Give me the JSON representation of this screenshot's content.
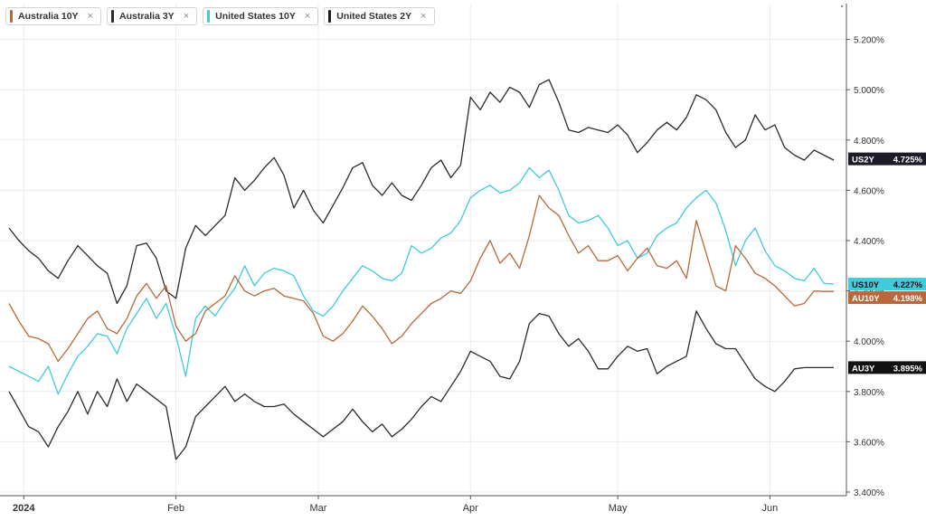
{
  "legend": [
    {
      "label": "Australia 10Y",
      "color": "#b8683a",
      "close": "×"
    },
    {
      "label": "Australia 3Y",
      "color": "#2b2b2b",
      "close": "×"
    },
    {
      "label": "United States 10Y",
      "color": "#3ecbdb",
      "close": "×"
    },
    {
      "label": "United States 2Y",
      "color": "#1c1c28",
      "close": "×"
    }
  ],
  "chart_data": {
    "type": "line",
    "xlabel": "",
    "ylabel": "",
    "ylim": [
      3.4,
      5.4
    ],
    "y_ticks": [
      "3.400%",
      "3.600%",
      "3.800%",
      "4.000%",
      "4.200%",
      "4.400%",
      "4.600%",
      "4.800%",
      "5.000%",
      "5.200%"
    ],
    "x_ticks": [
      "2024",
      "Feb",
      "Mar",
      "Apr",
      "May",
      "Jun"
    ],
    "x_tick_days": [
      3,
      34,
      63,
      94,
      124,
      155
    ],
    "x_range": [
      "2023-12-29",
      "2024-06-17"
    ],
    "grid": true,
    "legend_position": "top-left",
    "series": [
      {
        "name": "United States 2Y",
        "tag": "US2Y",
        "last": "4.725%",
        "last_value": 4.725,
        "color": "#2b2b2b",
        "tag_bg": "#1c1c28",
        "tag_text": "#ffffff",
        "x": [
          0,
          2,
          4,
          6,
          8,
          10,
          12,
          14,
          16,
          18,
          20,
          22,
          24,
          26,
          28,
          30,
          32,
          34,
          36,
          38,
          40,
          42,
          44,
          46,
          48,
          50,
          52,
          54,
          56,
          58,
          60,
          62,
          64,
          66,
          68,
          70,
          72,
          74,
          76,
          78,
          80,
          82,
          84,
          86,
          88,
          90,
          92,
          94,
          96,
          98,
          100,
          102,
          104,
          106,
          108,
          110,
          112,
          114,
          116,
          118,
          120,
          122,
          124,
          126,
          128,
          130,
          132,
          134,
          136,
          138,
          140,
          142,
          144,
          146,
          148,
          150,
          152,
          154,
          156,
          158,
          160,
          162,
          164,
          166,
          168
        ],
        "values": [
          4.45,
          4.4,
          4.36,
          4.33,
          4.28,
          4.25,
          4.32,
          4.38,
          4.34,
          4.3,
          4.27,
          4.15,
          4.22,
          4.38,
          4.39,
          4.33,
          4.2,
          4.17,
          4.37,
          4.46,
          4.42,
          4.46,
          4.5,
          4.65,
          4.6,
          4.64,
          4.69,
          4.73,
          4.66,
          4.53,
          4.6,
          4.52,
          4.47,
          4.54,
          4.61,
          4.69,
          4.71,
          4.62,
          4.58,
          4.63,
          4.58,
          4.56,
          4.62,
          4.69,
          4.72,
          4.65,
          4.7,
          4.97,
          4.92,
          4.99,
          4.95,
          5.01,
          4.99,
          4.93,
          5.02,
          5.04,
          4.95,
          4.84,
          4.83,
          4.85,
          4.84,
          4.83,
          4.86,
          4.82,
          4.75,
          4.79,
          4.84,
          4.87,
          4.84,
          4.89,
          4.98,
          4.96,
          4.92,
          4.83,
          4.77,
          4.8,
          4.9,
          4.84,
          4.86,
          4.77,
          4.74,
          4.72,
          4.76,
          4.74,
          4.72
        ]
      },
      {
        "name": "United States 10Y",
        "tag": "US10Y",
        "last": "4.227%",
        "last_value": 4.227,
        "color": "#3ecbdb",
        "tag_bg": "#3ecbdb",
        "tag_text": "#111111",
        "x": [
          0,
          2,
          4,
          6,
          8,
          10,
          12,
          14,
          16,
          18,
          20,
          22,
          24,
          26,
          28,
          30,
          32,
          34,
          36,
          38,
          40,
          42,
          44,
          46,
          48,
          50,
          52,
          54,
          56,
          58,
          60,
          62,
          64,
          66,
          68,
          70,
          72,
          74,
          76,
          78,
          80,
          82,
          84,
          86,
          88,
          90,
          92,
          94,
          96,
          98,
          100,
          102,
          104,
          106,
          108,
          110,
          112,
          114,
          116,
          118,
          120,
          122,
          124,
          126,
          128,
          130,
          132,
          134,
          136,
          138,
          140,
          142,
          144,
          146,
          148,
          150,
          152,
          154,
          156,
          158,
          160,
          162,
          164,
          166,
          168
        ],
        "values": [
          3.9,
          3.88,
          3.86,
          3.84,
          3.9,
          3.79,
          3.87,
          3.94,
          3.98,
          4.03,
          4.02,
          3.95,
          4.05,
          4.11,
          4.17,
          4.09,
          4.15,
          4.02,
          3.86,
          4.09,
          4.14,
          4.1,
          4.16,
          4.21,
          4.3,
          4.22,
          4.27,
          4.29,
          4.28,
          4.26,
          4.18,
          4.12,
          4.1,
          4.14,
          4.2,
          4.25,
          4.3,
          4.28,
          4.25,
          4.24,
          4.27,
          4.38,
          4.35,
          4.37,
          4.41,
          4.43,
          4.48,
          4.57,
          4.6,
          4.62,
          4.59,
          4.6,
          4.63,
          4.69,
          4.65,
          4.68,
          4.6,
          4.5,
          4.47,
          4.48,
          4.5,
          4.45,
          4.38,
          4.4,
          4.33,
          4.35,
          4.42,
          4.45,
          4.47,
          4.53,
          4.57,
          4.6,
          4.55,
          4.44,
          4.3,
          4.4,
          4.45,
          4.36,
          4.3,
          4.28,
          4.25,
          4.24,
          4.29,
          4.23,
          4.227
        ]
      },
      {
        "name": "Australia 10Y",
        "tag": "AU10Y",
        "last": "4.198%",
        "last_value": 4.198,
        "color": "#b8683a",
        "tag_bg": "#b8683a",
        "tag_text": "#ffffff",
        "x": [
          0,
          2,
          4,
          6,
          8,
          10,
          12,
          14,
          16,
          18,
          20,
          22,
          24,
          26,
          28,
          30,
          32,
          34,
          36,
          38,
          40,
          42,
          44,
          46,
          48,
          50,
          52,
          54,
          56,
          58,
          60,
          62,
          64,
          66,
          68,
          70,
          72,
          74,
          76,
          78,
          80,
          82,
          84,
          86,
          88,
          90,
          92,
          94,
          96,
          98,
          100,
          102,
          104,
          106,
          108,
          110,
          112,
          114,
          116,
          118,
          120,
          122,
          124,
          126,
          128,
          130,
          132,
          134,
          136,
          138,
          140,
          142,
          144,
          146,
          148,
          150,
          152,
          154,
          156,
          158,
          160,
          162,
          164,
          166,
          168
        ],
        "values": [
          4.15,
          4.08,
          4.02,
          4.01,
          3.99,
          3.92,
          3.97,
          4.03,
          4.09,
          4.12,
          4.05,
          4.03,
          4.09,
          4.18,
          4.23,
          4.17,
          4.22,
          4.06,
          4.0,
          4.03,
          4.12,
          4.15,
          4.18,
          4.26,
          4.2,
          4.18,
          4.2,
          4.21,
          4.18,
          4.17,
          4.16,
          4.11,
          4.02,
          4.0,
          4.03,
          4.08,
          4.14,
          4.1,
          4.05,
          3.99,
          4.02,
          4.07,
          4.11,
          4.15,
          4.17,
          4.2,
          4.19,
          4.24,
          4.33,
          4.4,
          4.31,
          4.35,
          4.29,
          4.42,
          4.58,
          4.53,
          4.5,
          4.42,
          4.35,
          4.38,
          4.32,
          4.32,
          4.34,
          4.28,
          4.33,
          4.37,
          4.3,
          4.29,
          4.32,
          4.25,
          4.48,
          4.35,
          4.22,
          4.2,
          4.38,
          4.33,
          4.27,
          4.25,
          4.22,
          4.18,
          4.14,
          4.15,
          4.2,
          4.198,
          4.198
        ]
      },
      {
        "name": "Australia 3Y",
        "tag": "AU3Y",
        "last": "3.895%",
        "last_value": 3.895,
        "color": "#2b2b2b",
        "tag_bg": "#111111",
        "tag_text": "#ffffff",
        "x": [
          0,
          2,
          4,
          6,
          8,
          10,
          12,
          14,
          16,
          18,
          20,
          22,
          24,
          26,
          28,
          30,
          32,
          34,
          36,
          38,
          40,
          42,
          44,
          46,
          48,
          50,
          52,
          54,
          56,
          58,
          60,
          62,
          64,
          66,
          68,
          70,
          72,
          74,
          76,
          78,
          80,
          82,
          84,
          86,
          88,
          90,
          92,
          94,
          96,
          98,
          100,
          102,
          104,
          106,
          108,
          110,
          112,
          114,
          116,
          118,
          120,
          122,
          124,
          126,
          128,
          130,
          132,
          134,
          136,
          138,
          140,
          142,
          144,
          146,
          148,
          150,
          152,
          154,
          156,
          158,
          160,
          162,
          164,
          166,
          168
        ],
        "values": [
          3.8,
          3.73,
          3.66,
          3.64,
          3.58,
          3.66,
          3.72,
          3.8,
          3.71,
          3.8,
          3.74,
          3.85,
          3.76,
          3.83,
          3.8,
          3.77,
          3.74,
          3.53,
          3.58,
          3.7,
          3.74,
          3.78,
          3.82,
          3.76,
          3.79,
          3.76,
          3.74,
          3.74,
          3.75,
          3.71,
          3.68,
          3.65,
          3.62,
          3.65,
          3.68,
          3.73,
          3.68,
          3.64,
          3.67,
          3.62,
          3.65,
          3.69,
          3.74,
          3.78,
          3.76,
          3.82,
          3.88,
          3.96,
          3.94,
          3.92,
          3.86,
          3.85,
          3.92,
          4.07,
          4.11,
          4.1,
          4.03,
          3.98,
          4.01,
          3.96,
          3.89,
          3.89,
          3.94,
          3.98,
          3.96,
          3.97,
          3.87,
          3.9,
          3.92,
          3.94,
          4.12,
          4.05,
          3.99,
          3.97,
          3.97,
          3.91,
          3.85,
          3.82,
          3.8,
          3.84,
          3.89,
          3.895,
          3.895,
          3.895,
          3.895
        ]
      }
    ]
  }
}
